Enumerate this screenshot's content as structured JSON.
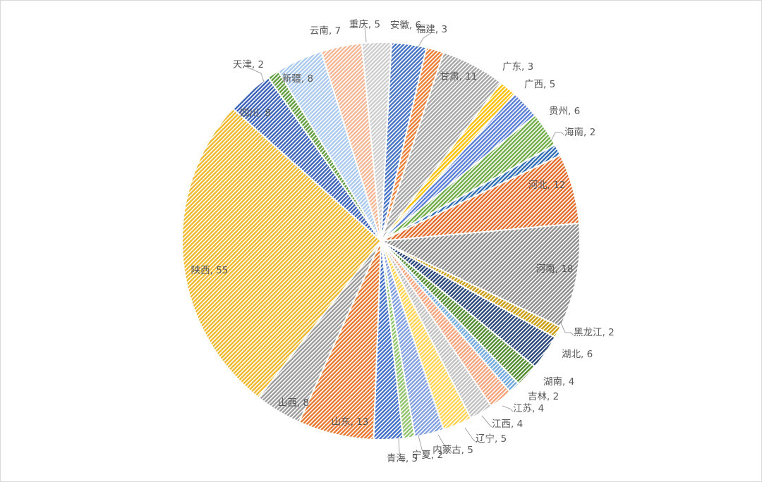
{
  "chart_data": {
    "type": "pie",
    "title": "",
    "legend": "none",
    "start_angle_deg": 3,
    "slices": [
      {
        "name": "安徽",
        "value": 6,
        "label": "安徽, 6",
        "color": "#4472c4"
      },
      {
        "name": "福建",
        "value": 3,
        "label": "福建, 3",
        "color": "#ed7d31"
      },
      {
        "name": "甘肃",
        "value": 11,
        "label": "甘肃, 11",
        "color": "#a5a5a5"
      },
      {
        "name": "广东",
        "value": 3,
        "label": "广东, 3",
        "color": "#ffc000"
      },
      {
        "name": "广西",
        "value": 5,
        "label": "广西, 5",
        "color": "#5b7fd6"
      },
      {
        "name": "贵州",
        "value": 6,
        "label": "贵州, 6",
        "color": "#70ad47"
      },
      {
        "name": "海南",
        "value": 2,
        "label": "海南, 2",
        "color": "#2e6db5"
      },
      {
        "name": "河北",
        "value": 12,
        "label": "河北, 12",
        "color": "#e46c2a"
      },
      {
        "name": "河南",
        "value": 18,
        "label": "河南, 18",
        "color": "#8c8c8c"
      },
      {
        "name": "黑龙江",
        "value": 2,
        "label": "黑龙江, 2",
        "color": "#c99a06"
      },
      {
        "name": "湖北",
        "value": 6,
        "label": "湖北, 6",
        "color": "#264478"
      },
      {
        "name": "湖南",
        "value": 4,
        "label": "湖南, 4",
        "color": "#4f8a2c"
      },
      {
        "name": "吉林",
        "value": 2,
        "label": "吉林, 2",
        "color": "#6fa8dc"
      },
      {
        "name": "江苏",
        "value": 4,
        "label": "江苏, 4",
        "color": "#f4a27a"
      },
      {
        "name": "江西",
        "value": 4,
        "label": "江西, 4",
        "color": "#c0c0c0"
      },
      {
        "name": "辽宁",
        "value": 5,
        "label": "辽宁, 5",
        "color": "#ffd34f"
      },
      {
        "name": "内蒙古",
        "value": 5,
        "label": "内蒙古, 5",
        "color": "#7f9ee0"
      },
      {
        "name": "宁夏",
        "value": 2,
        "label": "宁夏, 2",
        "color": "#8fc36a"
      },
      {
        "name": "青海",
        "value": 5,
        "label": "青海, 5",
        "color": "#3f6fc8"
      },
      {
        "name": "山东",
        "value": 13,
        "label": "山东, 13",
        "color": "#e8772e"
      },
      {
        "name": "山西",
        "value": 8,
        "label": "山西, 8",
        "color": "#9b9b9b"
      },
      {
        "name": "陕西",
        "value": 55,
        "label": "陕西, 55",
        "color": "#efb72a"
      },
      {
        "name": "四川",
        "value": 8,
        "label": "四川, 8",
        "color": "#3a62b8"
      },
      {
        "name": "天津",
        "value": 2,
        "label": "天津, 2",
        "color": "#5f9c3a"
      },
      {
        "name": "新疆",
        "value": 8,
        "label": "新疆, 8",
        "color": "#a9c9ee"
      },
      {
        "name": "云南",
        "value": 7,
        "label": "云南, 7",
        "color": "#f5b592"
      },
      {
        "name": "重庆",
        "value": 5,
        "label": "重庆, 5",
        "color": "#cccccc"
      }
    ]
  }
}
